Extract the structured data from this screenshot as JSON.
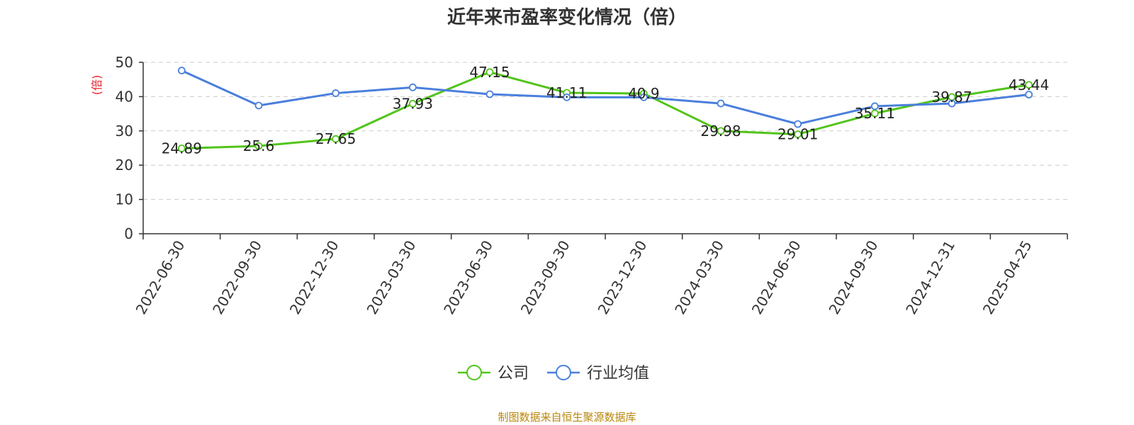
{
  "title": "近年来市盈率变化情况（倍）",
  "source": "制图数据来自恒生聚源数据库",
  "colors": {
    "company": "#52c41a",
    "industry": "#4a7fdc",
    "ylabel": "#e8202a",
    "grid": "#cccccc",
    "axis": "#333333"
  },
  "chart_data": {
    "type": "line",
    "title": "近年来市盈率变化情况（倍）",
    "xlabel": "",
    "ylabel": "(倍)",
    "ylim": [
      0,
      50
    ],
    "yticks": [
      0,
      10,
      20,
      30,
      40,
      50
    ],
    "grid": true,
    "legend_position": "bottom",
    "categories": [
      "2022-06-30",
      "2022-09-30",
      "2022-12-30",
      "2023-03-30",
      "2023-06-30",
      "2023-09-30",
      "2023-12-30",
      "2024-03-30",
      "2024-06-30",
      "2024-09-30",
      "2024-12-31",
      "2025-04-25"
    ],
    "series": [
      {
        "name": "公司",
        "color": "#52c41a",
        "values": [
          24.89,
          25.6,
          27.65,
          37.93,
          47.15,
          41.11,
          40.9,
          29.98,
          29.01,
          35.11,
          39.87,
          43.44
        ],
        "labels": [
          "24.89",
          "25.6",
          "27.65",
          "37.93",
          "47.15",
          "41.11",
          "40.9",
          "29.98",
          "29.01",
          "35.11",
          "39.87",
          "43.44"
        ]
      },
      {
        "name": "行业均值",
        "color": "#4a7fdc",
        "values": [
          47.6,
          37.4,
          41.0,
          42.7,
          40.7,
          39.8,
          39.8,
          38.0,
          32.0,
          37.2,
          38.0,
          40.6
        ]
      }
    ]
  }
}
